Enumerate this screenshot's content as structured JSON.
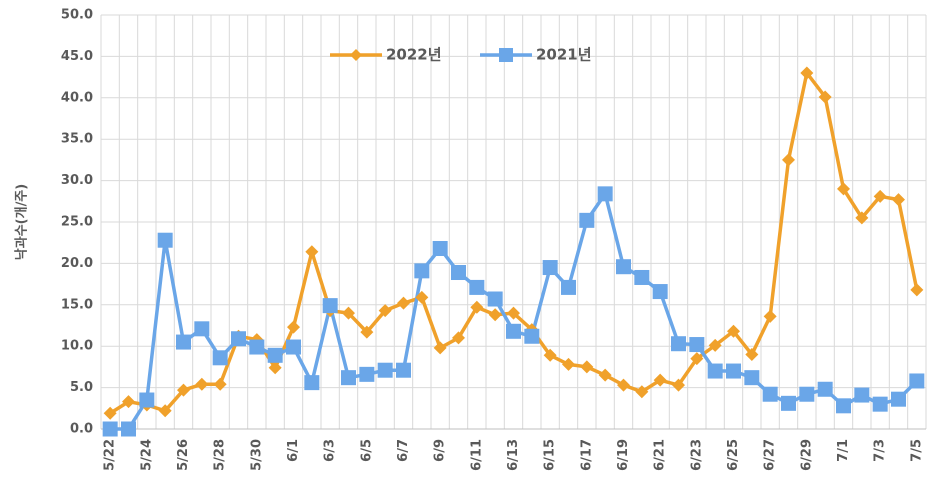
{
  "chart_data": {
    "type": "line",
    "y_label": "낙과수(개/주)",
    "categories": [
      "5/22",
      null,
      "5/24",
      null,
      "5/26",
      null,
      "5/28",
      null,
      "5/30",
      null,
      "6/1",
      null,
      "6/3",
      null,
      "6/5",
      null,
      "6/7",
      null,
      "6/9",
      null,
      "6/11",
      null,
      "6/13",
      null,
      "6/15",
      null,
      "6/17",
      null,
      "6/19",
      null,
      "6/21",
      null,
      "6/23",
      null,
      "6/25",
      null,
      "6/27",
      null,
      "6/29",
      null,
      "7/1",
      null,
      "7/3",
      null,
      "7/5"
    ],
    "series": [
      {
        "name": "2022년",
        "color": "#f0a12b",
        "marker": "diamond",
        "values": [
          1.9,
          3.3,
          2.9,
          2.2,
          4.7,
          5.4,
          5.4,
          11.2,
          10.8,
          7.4,
          12.3,
          21.4,
          14.3,
          14.0,
          11.7,
          14.3,
          15.2,
          15.9,
          9.8,
          11.0,
          14.7,
          13.8,
          14.0,
          12.0,
          8.9,
          7.8,
          7.5,
          6.5,
          5.3,
          4.5,
          5.9,
          5.3,
          8.5,
          10.1,
          11.8,
          9.0,
          13.6,
          32.5,
          43.0,
          40.1,
          29.0,
          25.5,
          28.1,
          27.7,
          16.8
        ]
      },
      {
        "name": "2021년",
        "color": "#6aa6e8",
        "marker": "square",
        "values": [
          0,
          0,
          3.5,
          22.8,
          10.5,
          12.1,
          8.6,
          10.9,
          9.9,
          8.9,
          9.9,
          5.6,
          14.9,
          6.2,
          6.6,
          7.1,
          7.1,
          19.1,
          21.8,
          18.9,
          17.1,
          15.7,
          11.8,
          11.2,
          19.5,
          17.1,
          25.2,
          28.4,
          19.6,
          18.3,
          16.6,
          10.3,
          10.2,
          7.0,
          7.0,
          6.2,
          4.2,
          3.1,
          4.2,
          4.8,
          2.8,
          4.1,
          3.0,
          3.6,
          5.8
        ]
      }
    ],
    "ylim": [
      0,
      50
    ],
    "yticks": [
      {
        "value": 0,
        "label": "0.0"
      },
      {
        "value": 5,
        "label": "5.0"
      },
      {
        "value": 10,
        "label": "10.0"
      },
      {
        "value": 15,
        "label": "15.0"
      },
      {
        "value": 20,
        "label": "20.0"
      },
      {
        "value": 25,
        "label": "25.0"
      },
      {
        "value": 30,
        "label": "30.0"
      },
      {
        "value": 35,
        "label": "35.0"
      },
      {
        "value": 40,
        "label": "40.0"
      },
      {
        "value": 45,
        "label": "45.0"
      },
      {
        "value": 50,
        "label": "50.0"
      }
    ],
    "grid": true,
    "vertical_grid": true,
    "legend": "top"
  }
}
